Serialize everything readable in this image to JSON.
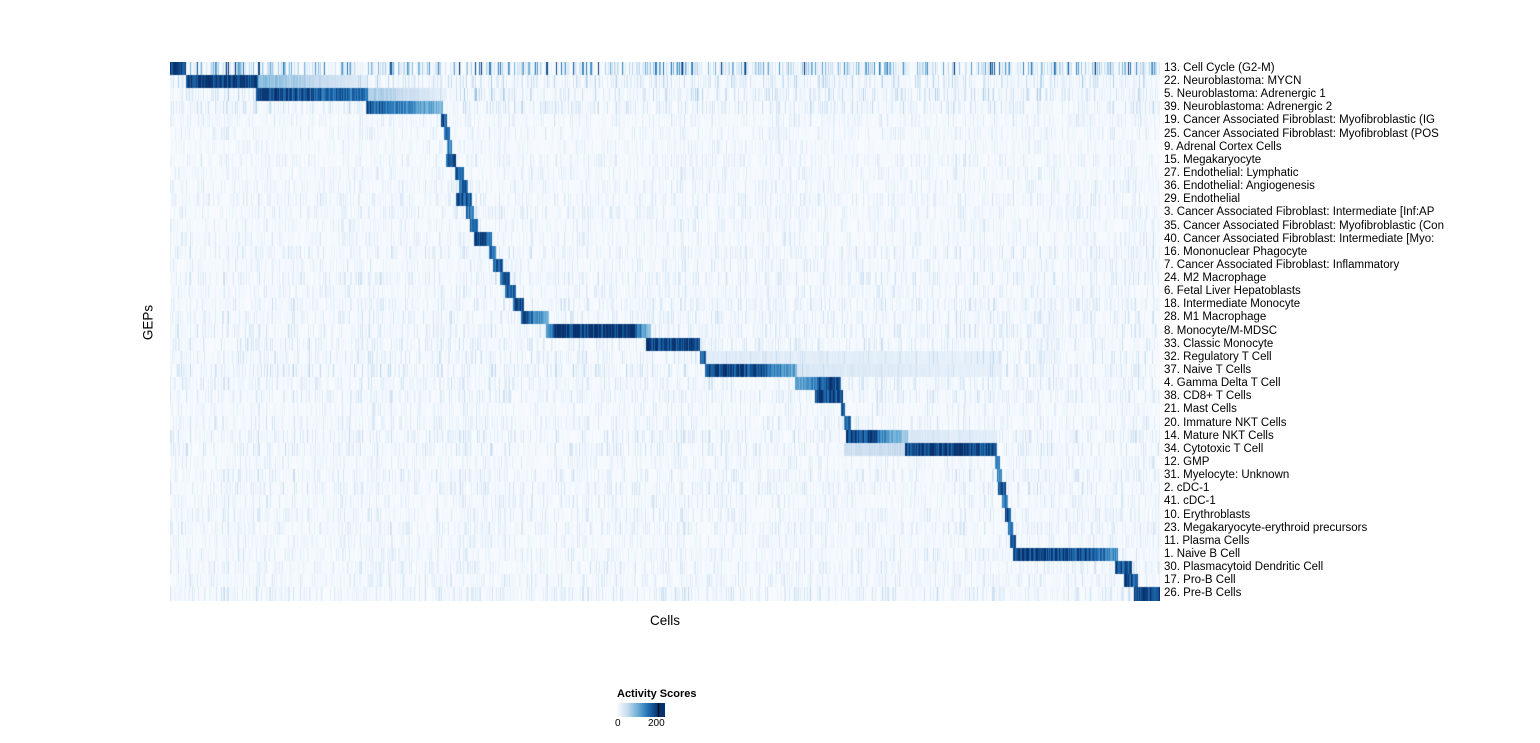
{
  "chart_data": {
    "type": "heatmap",
    "xlabel": "Cells",
    "ylabel": "GEPs",
    "legend": {
      "title": "Activity Scores",
      "tick_labels": [
        "0",
        "200"
      ],
      "tick_values": [
        0,
        200
      ]
    },
    "colormap": "Blues",
    "colormap_stops": [
      "#f7fbff",
      "#c6dbef",
      "#6baed6",
      "#2171b5",
      "#08306b"
    ],
    "band_format": "[x_start_fraction_of_cells_axis, x_end_fraction, intensity_start_0to1, intensity_end_0to1] where intensity 1.0 ~ activity score 235 on the 0-200+ legend scale",
    "rows": [
      {
        "label": "13. Cell Cycle (G2-M)",
        "noise": 0.34,
        "bands": [
          [
            0.0,
            0.016,
            0.95,
            0.95
          ]
        ]
      },
      {
        "label": "22. Neuroblastoma: MYCN",
        "noise": 0.12,
        "bands": [
          [
            0.016,
            0.088,
            1.0,
            0.9
          ],
          [
            0.088,
            0.2,
            0.45,
            0.1
          ]
        ]
      },
      {
        "label": "5. Neuroblastoma: Adrenergic 1",
        "noise": 0.12,
        "bands": [
          [
            0.086,
            0.2,
            0.95,
            0.75
          ],
          [
            0.2,
            0.275,
            0.35,
            0.1
          ]
        ]
      },
      {
        "label": "39. Neuroblastoma: Adrenergic 2",
        "noise": 0.1,
        "bands": [
          [
            0.197,
            0.275,
            0.9,
            0.45
          ]
        ]
      },
      {
        "label": "19. Cancer Associated Fibroblast: Myofibroblastic (IG",
        "noise": 0.06,
        "bands": [
          [
            0.273,
            0.279,
            0.85,
            0.85
          ]
        ]
      },
      {
        "label": "25. Cancer Associated Fibroblast: Myofibroblast (POS",
        "noise": 0.06,
        "bands": [
          [
            0.276,
            0.282,
            0.8,
            0.8
          ]
        ]
      },
      {
        "label": "9. Adrenal Cortex Cells",
        "noise": 0.05,
        "bands": [
          [
            0.279,
            0.284,
            0.7,
            0.7
          ]
        ]
      },
      {
        "label": "15. Megakaryocyte",
        "noise": 0.06,
        "bands": [
          [
            0.278,
            0.288,
            0.85,
            0.85
          ]
        ]
      },
      {
        "label": "27. Endothelial: Lymphatic",
        "noise": 0.06,
        "bands": [
          [
            0.287,
            0.296,
            0.85,
            0.85
          ]
        ]
      },
      {
        "label": "36. Endothelial: Angiogenesis",
        "noise": 0.06,
        "bands": [
          [
            0.291,
            0.301,
            0.8,
            0.8
          ]
        ]
      },
      {
        "label": "29. Endothelial",
        "noise": 0.07,
        "bands": [
          [
            0.288,
            0.305,
            0.9,
            0.9
          ]
        ]
      },
      {
        "label": "3. Cancer Associated Fibroblast: Intermediate [Inf:AP",
        "noise": 0.07,
        "bands": [
          [
            0.298,
            0.307,
            0.75,
            0.75
          ]
        ]
      },
      {
        "label": "35. Cancer Associated Fibroblast: Myofibroblastic (Con",
        "noise": 0.06,
        "bands": [
          [
            0.303,
            0.311,
            0.8,
            0.8
          ]
        ]
      },
      {
        "label": "40. Cancer Associated Fibroblast: Intermediate [Myo:",
        "noise": 0.06,
        "bands": [
          [
            0.307,
            0.325,
            0.95,
            0.85
          ]
        ]
      },
      {
        "label": "16. Mononuclear Phagocyte",
        "noise": 0.08,
        "bands": [
          [
            0.322,
            0.329,
            0.8,
            0.8
          ]
        ]
      },
      {
        "label": "7. Cancer Associated Fibroblast: Inflammatory",
        "noise": 0.07,
        "bands": [
          [
            0.326,
            0.336,
            0.85,
            0.85
          ]
        ]
      },
      {
        "label": "24. M2 Macrophage",
        "noise": 0.08,
        "bands": [
          [
            0.333,
            0.343,
            0.85,
            0.85
          ]
        ]
      },
      {
        "label": "6. Fetal Liver Hepatoblasts",
        "noise": 0.07,
        "bands": [
          [
            0.338,
            0.349,
            0.8,
            0.8
          ]
        ]
      },
      {
        "label": "18. Intermediate Monocyte",
        "noise": 0.08,
        "bands": [
          [
            0.346,
            0.357,
            0.9,
            0.9
          ]
        ]
      },
      {
        "label": "28. M1 Macrophage",
        "noise": 0.08,
        "bands": [
          [
            0.354,
            0.382,
            0.9,
            0.5
          ]
        ]
      },
      {
        "label": "8. Monocyte/M-MDSC",
        "noise": 0.08,
        "bands": [
          [
            0.379,
            0.39,
            0.5,
            0.95
          ],
          [
            0.39,
            0.47,
            1.0,
            1.0
          ],
          [
            0.47,
            0.485,
            0.8,
            0.4
          ]
        ]
      },
      {
        "label": "33. Classic Monocyte",
        "noise": 0.08,
        "bands": [
          [
            0.48,
            0.535,
            1.0,
            0.95
          ]
        ]
      },
      {
        "label": "32. Regulatory T Cell",
        "noise": 0.09,
        "bands": [
          [
            0.535,
            0.541,
            0.8,
            0.8
          ],
          [
            0.541,
            0.84,
            0.12,
            0.08
          ]
        ]
      },
      {
        "label": "37. Naive T Cells",
        "noise": 0.1,
        "bands": [
          [
            0.54,
            0.6,
            0.95,
            0.9
          ],
          [
            0.6,
            0.633,
            0.85,
            0.5
          ],
          [
            0.633,
            0.84,
            0.15,
            0.08
          ]
        ]
      },
      {
        "label": "4. Gamma Delta T Cell",
        "noise": 0.08,
        "bands": [
          [
            0.631,
            0.655,
            0.5,
            0.7
          ],
          [
            0.655,
            0.677,
            0.9,
            0.85
          ]
        ]
      },
      {
        "label": "38. CD8+ T Cells",
        "noise": 0.08,
        "bands": [
          [
            0.651,
            0.679,
            0.9,
            0.9
          ]
        ]
      },
      {
        "label": "21. Mast Cells",
        "noise": 0.06,
        "bands": [
          [
            0.677,
            0.681,
            0.8,
            0.8
          ]
        ]
      },
      {
        "label": "20. Immature NKT Cells",
        "noise": 0.07,
        "bands": [
          [
            0.68,
            0.687,
            0.75,
            0.75
          ]
        ]
      },
      {
        "label": "14. Mature NKT Cells",
        "noise": 0.09,
        "bands": [
          [
            0.682,
            0.715,
            0.95,
            0.85
          ],
          [
            0.715,
            0.745,
            0.7,
            0.35
          ],
          [
            0.745,
            0.835,
            0.15,
            0.1
          ]
        ]
      },
      {
        "label": "34. Cytotoxic T Cell",
        "noise": 0.09,
        "bands": [
          [
            0.68,
            0.742,
            0.2,
            0.25
          ],
          [
            0.742,
            0.835,
            0.95,
            0.9
          ]
        ]
      },
      {
        "label": "12. GMP",
        "noise": 0.06,
        "bands": [
          [
            0.833,
            0.838,
            0.7,
            0.7
          ]
        ]
      },
      {
        "label": "31. Myelocyte: Unknown",
        "noise": 0.08,
        "bands": [
          [
            0.835,
            0.84,
            0.65,
            0.65
          ]
        ]
      },
      {
        "label": "2. cDC-1",
        "noise": 0.08,
        "bands": [
          [
            0.836,
            0.844,
            0.85,
            0.85
          ]
        ]
      },
      {
        "label": "41. cDC-1",
        "noise": 0.07,
        "bands": [
          [
            0.84,
            0.846,
            0.7,
            0.7
          ]
        ]
      },
      {
        "label": "10. Erythroblasts",
        "noise": 0.07,
        "bands": [
          [
            0.843,
            0.849,
            0.9,
            0.9
          ]
        ]
      },
      {
        "label": "23. Megakaryocyte-erythroid precursors",
        "noise": 0.07,
        "bands": [
          [
            0.846,
            0.851,
            0.75,
            0.75
          ]
        ]
      },
      {
        "label": "11. Plasma Cells",
        "noise": 0.06,
        "bands": [
          [
            0.848,
            0.854,
            0.85,
            0.85
          ]
        ]
      },
      {
        "label": "1. Naive B Cell",
        "noise": 0.07,
        "bands": [
          [
            0.851,
            0.93,
            0.95,
            0.9
          ],
          [
            0.93,
            0.957,
            0.85,
            0.6
          ]
        ]
      },
      {
        "label": "30. Plasmacytoid Dendritic Cell",
        "noise": 0.07,
        "bands": [
          [
            0.954,
            0.971,
            0.9,
            0.85
          ]
        ]
      },
      {
        "label": "17. Pro-B Cell",
        "noise": 0.07,
        "bands": [
          [
            0.963,
            0.977,
            0.9,
            0.85
          ]
        ]
      },
      {
        "label": "26. Pre-B Cells",
        "noise": 0.09,
        "bands": [
          [
            0.973,
            1.0,
            0.95,
            0.95
          ]
        ]
      }
    ]
  }
}
